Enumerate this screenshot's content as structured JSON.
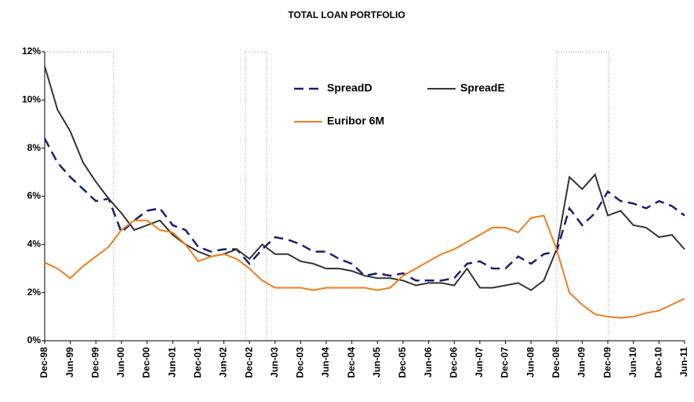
{
  "chart_data": {
    "type": "line",
    "title": "TOTAL LOAN PORTFOLIO",
    "categories": [
      "Dec-98",
      null,
      "Jun-99",
      null,
      "Dec-99",
      null,
      "Jun-00",
      null,
      "Dec-00",
      null,
      "Jun-01",
      null,
      "Dec-01",
      null,
      "Jun-02",
      null,
      "Dec-02",
      null,
      "Jun-03",
      null,
      "Dec-03",
      null,
      "Jun-04",
      null,
      "Dec-04",
      null,
      "Jun-05",
      null,
      "Dec-05",
      null,
      "Jun-06",
      null,
      "Dec-06",
      null,
      "Jun-07",
      null,
      "Dec-07",
      null,
      "Jun-08",
      null,
      "Dec-08",
      null,
      "Jun-09",
      null,
      "Dec-09",
      null,
      "Jun-10",
      null,
      "Dec-10",
      null,
      "Jun-11"
    ],
    "series": [
      {
        "name": "SpreadD",
        "color": "#1c1c78",
        "dashed": true,
        "values": [
          8.4,
          7.4,
          6.8,
          6.3,
          5.8,
          5.9,
          4.5,
          5.0,
          5.4,
          5.5,
          4.8,
          4.6,
          3.9,
          3.7,
          3.8,
          3.8,
          3.2,
          3.8,
          4.3,
          4.2,
          4.0,
          3.7,
          3.7,
          3.4,
          3.2,
          2.7,
          2.8,
          2.7,
          2.8,
          2.5,
          2.5,
          2.5,
          2.6,
          3.2,
          3.3,
          3.0,
          3.0,
          3.5,
          3.2,
          3.6,
          3.7,
          5.5,
          4.8,
          5.3,
          6.2,
          5.8,
          5.7,
          5.5,
          5.8,
          5.6,
          5.2
        ]
      },
      {
        "name": "SpreadE",
        "color": "#333333",
        "values": [
          11.4,
          9.6,
          8.7,
          7.4,
          6.6,
          5.9,
          5.3,
          4.6,
          4.8,
          5.0,
          4.4,
          4.0,
          3.7,
          3.5,
          3.6,
          3.8,
          3.4,
          4.0,
          3.6,
          3.6,
          3.3,
          3.2,
          3.0,
          3.0,
          2.9,
          2.7,
          2.6,
          2.6,
          2.5,
          2.3,
          2.4,
          2.4,
          2.3,
          3.0,
          2.2,
          2.2,
          2.3,
          2.4,
          2.1,
          2.5,
          3.8,
          6.8,
          6.3,
          6.9,
          5.2,
          5.4,
          4.8,
          4.7,
          4.3,
          4.4,
          3.8
        ]
      },
      {
        "name": "Euribor 6M",
        "color": "#f07d1a",
        "values": [
          3.25,
          3.0,
          2.6,
          3.1,
          3.5,
          3.9,
          4.6,
          5.0,
          5.0,
          4.6,
          4.5,
          4.0,
          3.3,
          3.5,
          3.6,
          3.4,
          3.0,
          2.5,
          2.2,
          2.2,
          2.2,
          2.1,
          2.2,
          2.2,
          2.2,
          2.2,
          2.1,
          2.2,
          2.7,
          3.0,
          3.3,
          3.6,
          3.8,
          4.1,
          4.4,
          4.7,
          4.7,
          4.5,
          5.1,
          5.2,
          3.8,
          2.0,
          1.5,
          1.1,
          1.0,
          0.95,
          1.0,
          1.15,
          1.25,
          1.5,
          1.75
        ]
      }
    ],
    "ylim": [
      0,
      12
    ],
    "yticks": [
      {
        "value": 0,
        "label": "0%"
      },
      {
        "value": 2,
        "label": "2%"
      },
      {
        "value": 4,
        "label": "4%"
      },
      {
        "value": 6,
        "label": "6%"
      },
      {
        "value": 8,
        "label": "8%"
      },
      {
        "value": 10,
        "label": "10%"
      },
      {
        "value": 12,
        "label": "12%"
      }
    ],
    "grid": false
  }
}
